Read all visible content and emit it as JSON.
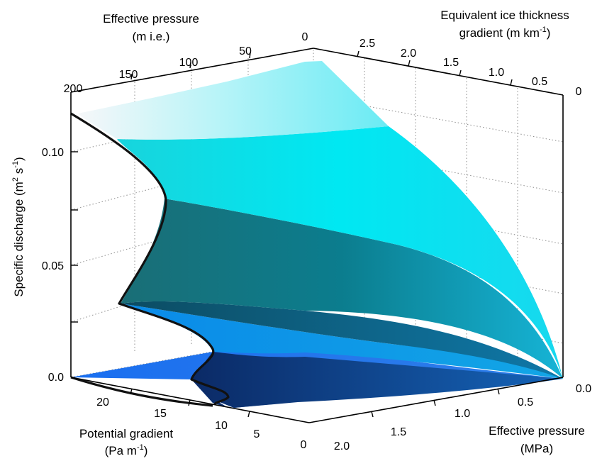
{
  "chart_data": {
    "type": "surface",
    "grid": true,
    "axes": {
      "top_front": {
        "label_line1": "Effective pressure",
        "label_line2": "(m i.e.)",
        "ticks": [
          "200",
          "150",
          "100",
          "50",
          "0"
        ]
      },
      "top_right": {
        "label_line1": "Equivalent ice thickness",
        "label_line2": "gradient (m km",
        "label_sup": "-1",
        "label_close": ")",
        "ticks": [
          "2.5",
          "2.0",
          "1.5",
          "1.0",
          "0.5",
          "0"
        ]
      },
      "vertical": {
        "label": "Specific discharge (m",
        "label_sup1": "2",
        "label_mid": " s",
        "label_sup2": "-1",
        "label_close": ")",
        "ticks": [
          "0.0",
          "0.05",
          "0.10"
        ],
        "ylim": [
          0,
          0.12
        ]
      },
      "bottom_left": {
        "label_line1": "Potential gradient",
        "label_line2": "(Pa m",
        "label_sup": "-1",
        "label_close": ")",
        "ticks": [
          "20",
          "15",
          "10",
          "5",
          "0"
        ]
      },
      "bottom_right": {
        "label_line1": "Effective pressure",
        "label_line2": "(MPa)",
        "ticks": [
          "2.0",
          "1.5",
          "1.0",
          "0.5",
          "0.0"
        ]
      }
    },
    "surface_colors": [
      "#f4f6f8",
      "#00e5f0",
      "#02c8d8",
      "#0a5a6e",
      "#0aa2e4",
      "#1676ec",
      "#0c3a7c"
    ]
  }
}
